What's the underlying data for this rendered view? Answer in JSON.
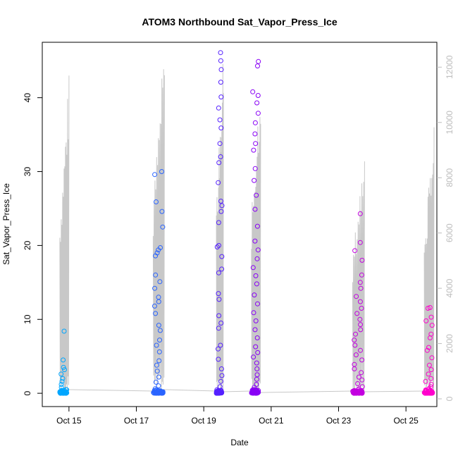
{
  "chart_data": {
    "type": "scatter",
    "title": "ATOM3 Northbound Sat_Vapor_Press_Ice",
    "xlabel": "Date",
    "ylabel": "Sat_Vapor_Press_Ice",
    "x_ticks": [
      "Oct 15",
      "Oct 17",
      "Oct 19",
      "Oct 21",
      "Oct 23",
      "Oct 25"
    ],
    "y_ticks": [
      "0",
      "10",
      "20",
      "30",
      "40"
    ],
    "y2_ticks": [
      "0",
      "2000",
      "4000",
      "6000",
      "8000",
      "10000",
      "12000"
    ],
    "xlim": [
      "2016-10-14T05:00",
      "2016-10-25T22:00"
    ],
    "ylim": [
      -1.8,
      47.5
    ],
    "y2lim": [
      -280,
      12900
    ],
    "grid": false,
    "color_by_time": {
      "start": "#00a6ff",
      "middle": "#6a00ff",
      "end": "#ff00cc"
    },
    "secondary_series_color": "#c8c8c8",
    "flights": [
      {
        "start": "2016-10-14T17:30",
        "end": "2016-10-14T22:30",
        "x_end": "2016-10-15T00:00",
        "altitude_max_y2": 11800,
        "vapor_points": [
          0.1,
          0.3,
          0.5,
          0.8,
          1.2,
          1.6,
          2.0,
          2.6,
          3.2,
          3.5,
          4.5,
          8.4,
          0.2,
          0.4,
          0.0
        ]
      },
      {
        "start": "2016-10-17T12:00",
        "end": "2016-10-17T19:00",
        "x_end": "2016-10-17T20:00",
        "altitude_max_y2": 13000,
        "vapor_points": [
          0.1,
          0.3,
          0.6,
          1.0,
          1.5,
          2.2,
          3.0,
          3.8,
          4.4,
          5.6,
          6.5,
          7.2,
          8.5,
          9.2,
          10.8,
          11.8,
          12.4,
          13.0,
          14.2,
          15.1,
          16.0,
          18.6,
          19.0,
          19.4,
          19.7,
          22.5,
          24.6,
          25.9,
          29.6,
          30.0,
          0.2,
          0.0
        ]
      },
      {
        "start": "2016-10-19T09:00",
        "end": "2016-10-19T13:00",
        "x_end": "2016-10-19T14:00",
        "altitude_max_y2": 12700,
        "vapor_points": [
          0.1,
          0.4,
          0.9,
          1.6,
          2.4,
          3.3,
          4.6,
          6.0,
          6.5,
          8.8,
          9.5,
          10.5,
          12.7,
          13.5,
          16.3,
          16.8,
          18.5,
          19.8,
          20.0,
          23.1,
          24.6,
          25.4,
          26.0,
          28.5,
          31.2,
          32.0,
          33.8,
          35.9,
          37.0,
          38.6,
          40.1,
          42.1,
          43.8,
          45.0,
          46.1,
          0.2
        ]
      },
      {
        "start": "2016-10-20T10:00",
        "end": "2016-10-20T15:00",
        "x_end": "2016-10-20T16:30",
        "altitude_max_y2": 12200,
        "vapor_points": [
          0.2,
          0.5,
          0.8,
          1.2,
          1.9,
          2.5,
          3.3,
          4.1,
          4.9,
          5.5,
          6.3,
          7.5,
          8.6,
          9.8,
          10.9,
          12.1,
          13.3,
          14.8,
          15.9,
          17.0,
          18.2,
          19.4,
          20.6,
          22.6,
          24.9,
          26.8,
          28.8,
          30.4,
          32.9,
          33.8,
          35.1,
          36.6,
          37.9,
          39.3,
          40.3,
          40.8,
          44.3,
          44.9,
          0.1
        ]
      },
      {
        "start": "2016-10-23T10:00",
        "end": "2016-10-23T17:00",
        "x_end": "2016-10-23T18:30",
        "altitude_max_y2": 9300,
        "vapor_points": [
          0.1,
          0.3,
          0.6,
          0.9,
          1.3,
          1.8,
          2.2,
          2.8,
          3.3,
          3.9,
          4.5,
          5.2,
          5.8,
          6.5,
          7.2,
          8.0,
          8.6,
          9.3,
          10.0,
          10.8,
          11.5,
          12.4,
          13.1,
          14.2,
          15.0,
          16.0,
          18.0,
          19.3,
          20.4,
          24.3,
          0.0,
          0.2
        ]
      },
      {
        "start": "2016-10-25T13:00",
        "end": "2016-10-25T19:00",
        "x_end": "2016-10-25T20:00",
        "altitude_max_y2": 10500,
        "vapor_points": [
          0.1,
          0.3,
          0.6,
          0.9,
          1.2,
          1.6,
          2.0,
          2.6,
          3.2,
          3.8,
          4.8,
          5.8,
          6.2,
          7.5,
          8.0,
          9.2,
          9.8,
          10.3,
          11.5,
          11.6,
          0.0
        ]
      }
    ]
  }
}
